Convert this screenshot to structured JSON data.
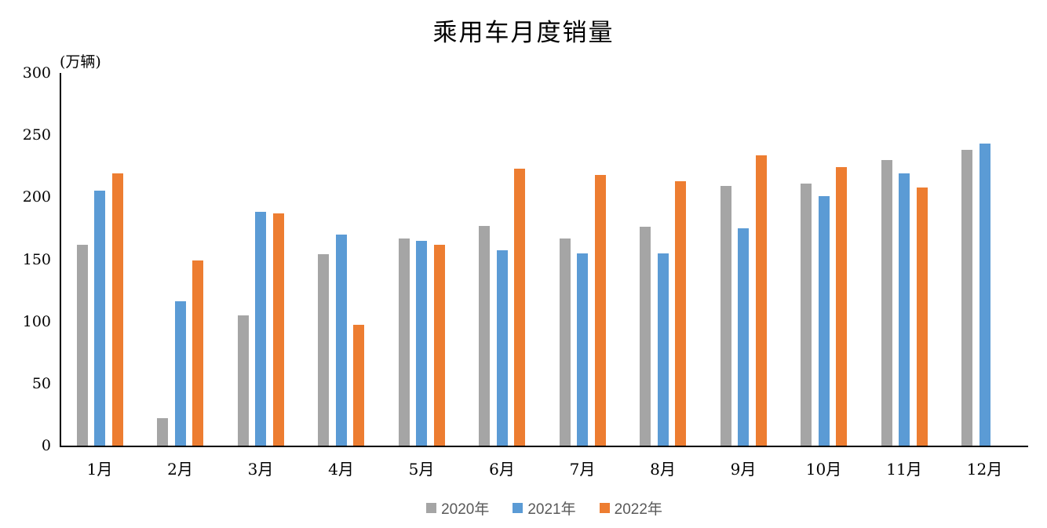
{
  "chart_data": {
    "type": "bar",
    "title": "乘用车月度销量",
    "ylabel": "(万辆)",
    "xlabel": "",
    "ylim": [
      0,
      300
    ],
    "yticks": [
      0,
      50,
      100,
      150,
      200,
      250,
      300
    ],
    "grid": false,
    "legend_position": "bottom",
    "categories": [
      "1月",
      "2月",
      "3月",
      "4月",
      "5月",
      "6月",
      "7月",
      "8月",
      "9月",
      "10月",
      "11月",
      "12月"
    ],
    "series": [
      {
        "name": "2020年",
        "color": "#A5A5A5",
        "values": [
          162,
          22,
          105,
          154,
          167,
          177,
          167,
          176,
          209,
          211,
          230,
          238
        ]
      },
      {
        "name": "2021年",
        "color": "#5B9BD5",
        "values": [
          205,
          116,
          188,
          170,
          165,
          157,
          155,
          155,
          175,
          201,
          219,
          243
        ]
      },
      {
        "name": "2022年",
        "color": "#ED7D31",
        "values": [
          219,
          149,
          187,
          97,
          162,
          223,
          218,
          213,
          234,
          224,
          208,
          null
        ]
      }
    ],
    "colors": {
      "axis": "#000000",
      "title_text": "#000000",
      "tick_text": "#000000",
      "legend_text": "#595959"
    }
  }
}
